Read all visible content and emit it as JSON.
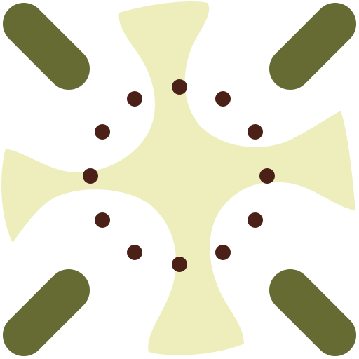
{
  "icon": {
    "name": "four-pointed-star-sparkle-icon",
    "colors": {
      "background": "#ffffff",
      "star_fill": "#eeeebd",
      "ray_stroke": "#666a33",
      "dot_fill": "#4b2017"
    },
    "elements": {
      "rays": 4,
      "dots": 12
    }
  }
}
